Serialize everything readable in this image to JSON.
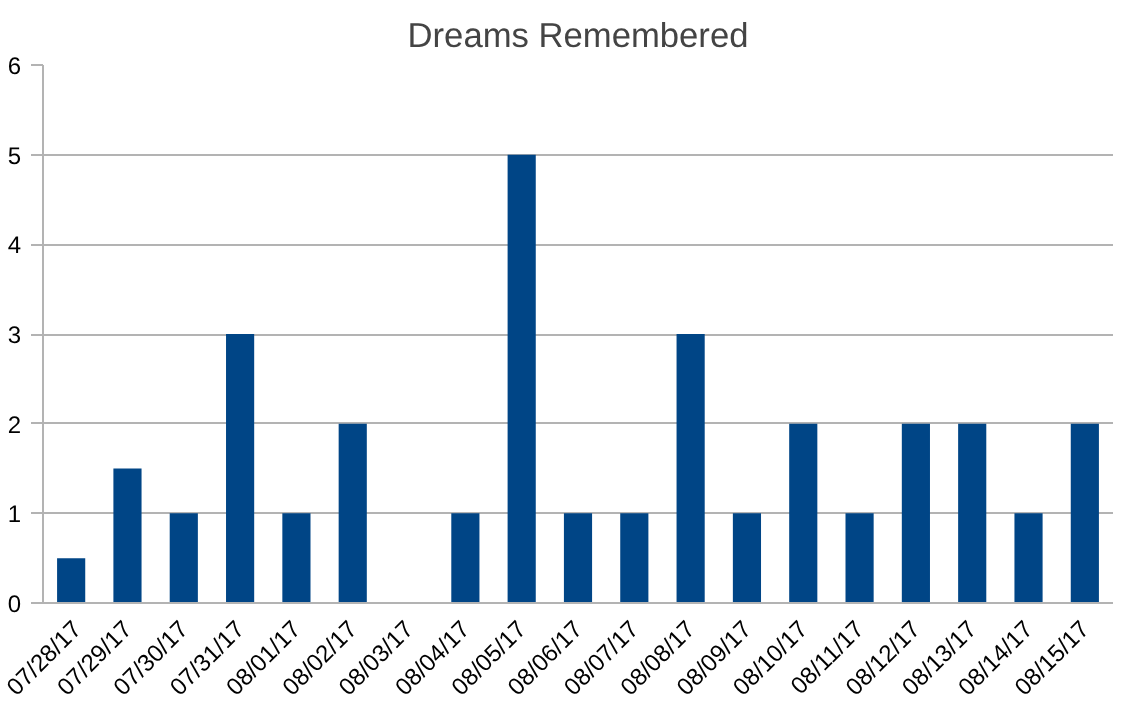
{
  "chart_data": {
    "type": "bar",
    "title": "Dreams Remembered",
    "categories": [
      "07/28/17",
      "07/29/17",
      "07/30/17",
      "07/31/17",
      "08/01/17",
      "08/02/17",
      "08/03/17",
      "08/04/17",
      "08/05/17",
      "08/06/17",
      "08/07/17",
      "08/08/17",
      "08/09/17",
      "08/10/17",
      "08/11/17",
      "08/12/17",
      "08/13/17",
      "08/14/17",
      "08/15/17"
    ],
    "values": [
      0.5,
      1.5,
      1,
      3,
      1,
      2,
      0,
      1,
      5,
      1,
      1,
      3,
      1,
      2,
      1,
      2,
      2,
      1,
      2
    ],
    "color": "#004586",
    "ylim": [
      0,
      6
    ],
    "yticks": [
      0,
      1,
      2,
      3,
      4,
      5,
      6
    ],
    "grid": "y"
  }
}
